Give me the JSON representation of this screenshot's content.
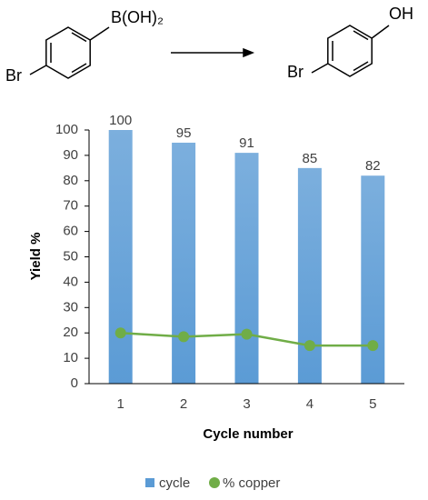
{
  "scheme": {
    "reactant_substituent": "B(OH)₂",
    "reactant_halogen": "Br",
    "product_substituent": "OH",
    "product_halogen": "Br"
  },
  "chart_data": {
    "type": "bar",
    "x_label": "Cycle number",
    "y_label": "Yield %",
    "categories": [
      "1",
      "2",
      "3",
      "4",
      "5"
    ],
    "series": [
      {
        "name": "cycle",
        "type": "bar",
        "color": "#5b9bd5",
        "values": [
          100,
          95,
          91,
          85,
          82
        ]
      },
      {
        "name": "% copper",
        "type": "line",
        "color": "#70ad47",
        "values": [
          20,
          18.5,
          19.5,
          15,
          15
        ]
      }
    ],
    "ylim": [
      0,
      100
    ],
    "yticks": [
      0,
      10,
      20,
      30,
      40,
      50,
      60,
      70,
      80,
      90,
      100
    ],
    "grid": false
  }
}
